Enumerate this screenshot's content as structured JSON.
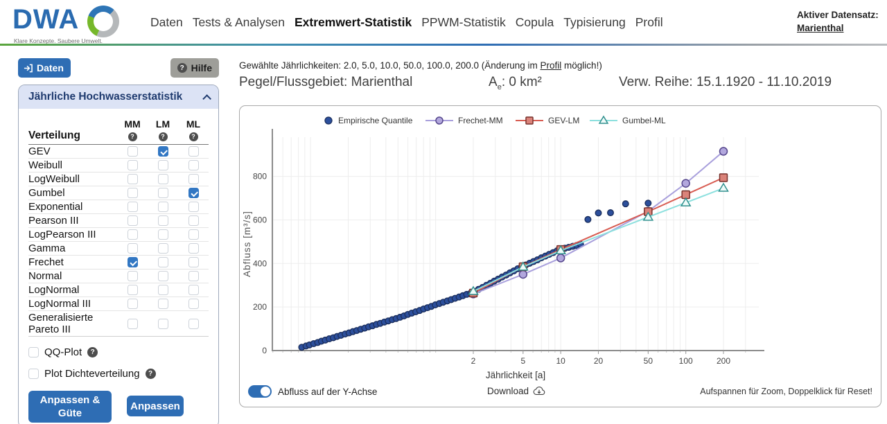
{
  "header": {
    "logo_text": "DWA",
    "logo_tagline": "Klare Konzepte. Saubere Umwelt.",
    "nav": [
      {
        "label": "Daten",
        "active": false
      },
      {
        "label": "Tests & Analysen",
        "active": false
      },
      {
        "label": "Extremwert-Statistik",
        "active": true
      },
      {
        "label": "PPWM-Statistik",
        "active": false
      },
      {
        "label": "Copula",
        "active": false
      },
      {
        "label": "Typisierung",
        "active": false
      },
      {
        "label": "Profil",
        "active": false
      }
    ],
    "active_dataset_label": "Aktiver Datensatz:",
    "active_dataset_value": "Marienthal"
  },
  "sidebar": {
    "daten_button": "Daten",
    "hilfe_button": "Hilfe",
    "panel_title": "Jährliche Hochwasserstatistik",
    "table": {
      "first_col_header": "Verteilung",
      "method_cols": [
        "MM",
        "LM",
        "ML"
      ],
      "rows": [
        {
          "name": "GEV",
          "checks": [
            false,
            true,
            false
          ]
        },
        {
          "name": "Weibull",
          "checks": [
            false,
            false,
            false
          ]
        },
        {
          "name": "LogWeibull",
          "checks": [
            false,
            false,
            false
          ]
        },
        {
          "name": "Gumbel",
          "checks": [
            false,
            false,
            true
          ]
        },
        {
          "name": "Exponential",
          "checks": [
            false,
            false,
            false
          ]
        },
        {
          "name": "Pearson III",
          "checks": [
            false,
            false,
            false
          ]
        },
        {
          "name": "LogPearson III",
          "checks": [
            false,
            false,
            false
          ]
        },
        {
          "name": "Gamma",
          "checks": [
            false,
            false,
            false
          ]
        },
        {
          "name": "Frechet",
          "checks": [
            true,
            false,
            false
          ]
        },
        {
          "name": "Normal",
          "checks": [
            false,
            false,
            false
          ]
        },
        {
          "name": "LogNormal",
          "checks": [
            false,
            false,
            false
          ]
        },
        {
          "name": "LogNormal III",
          "checks": [
            false,
            false,
            false
          ]
        },
        {
          "name": "Generalisierte Pareto III",
          "checks": [
            false,
            false,
            false
          ]
        }
      ]
    },
    "qq_plot_label": "QQ-Plot",
    "dichte_label": "Plot Dichteverteilung",
    "anpassen_guete_button": "Anpassen & Güte",
    "anpassen_button": "Anpassen"
  },
  "main": {
    "jaehrlichkeiten_prefix": "Gewählte Jährlichkeiten: 2.0, 5.0, 10.0, 50.0, 100.0, 200.0 (Änderung im ",
    "jaehrlichkeiten_link": "Profil",
    "jaehrlichkeiten_suffix": " möglich!)",
    "pegel": "Pegel/Flussgebiet: Marienthal",
    "area_symbol": "A",
    "area_sub": "e",
    "area_value": ": 0 km²",
    "reihe": "Verw. Reihe: 15.1.1920 - 11.10.2019",
    "toggle_label": "Abfluss auf der Y-Achse",
    "download_label": "Download",
    "zoom_hint": "Aufspannen für Zoom, Doppelklick für Reset!"
  },
  "chart_data": {
    "type": "scatter",
    "title": "",
    "xlabel": "Jährlichkeit [a]",
    "ylabel": "Abfluss [m³/s]",
    "x_scale": "log",
    "xlim": [
      0.05,
      380
    ],
    "ylim": [
      0,
      980
    ],
    "x_ticks": [
      2,
      5,
      10,
      20,
      50,
      100,
      200
    ],
    "y_ticks": [
      0,
      200,
      400,
      600,
      800
    ],
    "grid": true,
    "legend_position": "top",
    "empirical": {
      "name": "Empirische Quantile",
      "marker": "circle",
      "fill": "#2c4f9c",
      "stroke": "#1b2f5e",
      "points": [
        [
          0.085,
          15
        ],
        [
          0.092,
          21
        ],
        [
          0.098,
          26
        ],
        [
          0.106,
          32
        ],
        [
          0.114,
          37
        ],
        [
          0.122,
          43
        ],
        [
          0.131,
          48
        ],
        [
          0.141,
          54
        ],
        [
          0.152,
          59
        ],
        [
          0.163,
          65
        ],
        [
          0.175,
          70
        ],
        [
          0.189,
          76
        ],
        [
          0.203,
          81
        ],
        [
          0.218,
          87
        ],
        [
          0.234,
          92
        ],
        [
          0.252,
          98
        ],
        [
          0.271,
          103
        ],
        [
          0.291,
          109
        ],
        [
          0.313,
          114
        ],
        [
          0.336,
          120
        ],
        [
          0.361,
          125
        ],
        [
          0.389,
          131
        ],
        [
          0.418,
          136
        ],
        [
          0.449,
          142
        ],
        [
          0.483,
          147
        ],
        [
          0.519,
          153
        ],
        [
          0.558,
          159
        ],
        [
          0.599,
          166
        ],
        [
          0.644,
          172
        ],
        [
          0.693,
          178
        ],
        [
          0.745,
          184
        ],
        [
          0.801,
          191
        ],
        [
          0.861,
          197
        ],
        [
          0.925,
          203
        ],
        [
          0.994,
          210
        ],
        [
          1.07,
          216
        ],
        [
          1.15,
          222
        ],
        [
          1.24,
          228
        ],
        [
          1.33,
          234
        ],
        [
          1.43,
          240
        ],
        [
          1.54,
          246
        ],
        [
          1.65,
          252
        ],
        [
          1.77,
          258
        ],
        [
          1.91,
          264
        ],
        [
          2.05,
          271
        ],
        [
          2.2,
          281
        ],
        [
          2.37,
          290
        ],
        [
          2.55,
          300
        ],
        [
          2.74,
          309
        ],
        [
          2.94,
          319
        ],
        [
          3.16,
          328
        ],
        [
          3.4,
          338
        ],
        [
          3.66,
          347
        ],
        [
          3.93,
          357
        ],
        [
          4.22,
          366
        ],
        [
          4.54,
          376
        ],
        [
          4.88,
          385
        ],
        [
          5.25,
          393
        ],
        [
          5.64,
          401
        ],
        [
          6.06,
          409
        ],
        [
          6.52,
          417
        ],
        [
          7.0,
          426
        ],
        [
          7.53,
          434
        ],
        [
          8.09,
          442
        ],
        [
          8.7,
          450
        ],
        [
          9.35,
          458
        ],
        [
          10.1,
          465
        ],
        [
          10.8,
          470
        ],
        [
          11.6,
          474
        ],
        [
          12.5,
          479
        ],
        [
          13.4,
          483
        ],
        [
          14.4,
          488
        ],
        [
          16.5,
          602
        ],
        [
          20,
          632
        ],
        [
          25,
          633
        ],
        [
          33,
          674
        ],
        [
          50,
          677
        ]
      ]
    },
    "categories": [
      2,
      5,
      10,
      50,
      100,
      200
    ],
    "series": [
      {
        "name": "Frechet-MM",
        "marker": "circle",
        "line_color": "#a89fdc",
        "fill": "#b2a7dd",
        "stroke": "#55468c",
        "values": [
          260,
          350,
          425,
          640,
          768,
          915
        ]
      },
      {
        "name": "GEV-LM",
        "marker": "square",
        "line_color": "#d85c52",
        "fill": "#da837a",
        "stroke": "#77302b",
        "values": [
          264,
          385,
          464,
          638,
          716,
          794
        ]
      },
      {
        "name": "Gumbel-ML",
        "marker": "triangle",
        "line_color": "#8ce0de",
        "fill": "#eefbf9",
        "stroke": "#2f8f8d",
        "values": [
          272,
          384,
          459,
          613,
          679,
          746
        ]
      }
    ]
  }
}
